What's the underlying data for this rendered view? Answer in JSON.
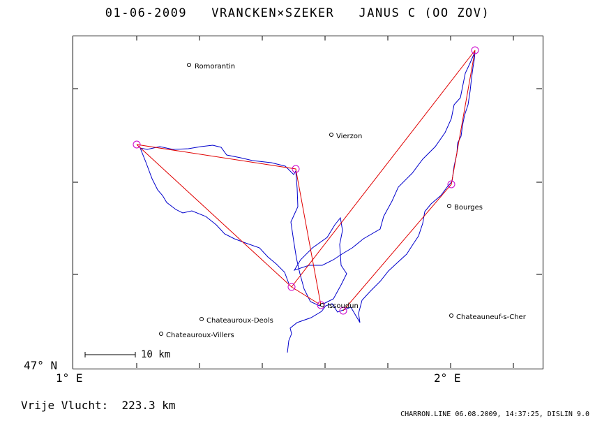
{
  "header": {
    "title": "01-06-2009   VRANCKEN×SZEKER   JANUS C (OO ZOV)"
  },
  "axes": {
    "lat_label": "47° N",
    "lon_labels": [
      "1° E",
      "2° E"
    ]
  },
  "scale": {
    "label": "10 km"
  },
  "cities": [
    {
      "name": "Romorantin"
    },
    {
      "name": "Vierzon"
    },
    {
      "name": "Bourges"
    },
    {
      "name": "Issoudun"
    },
    {
      "name": "Chateauroux-Deols"
    },
    {
      "name": "Chateauroux-Villers"
    },
    {
      "name": "Chateauneuf-s-Cher"
    }
  ],
  "summary": {
    "distance_text": "Vrije Vlucht:  223.3 km"
  },
  "footer": {
    "text": "CHARRON.LINE 06.08.2009, 14:37:25, DISLIN 9.0"
  },
  "colors": {
    "track": "#0000cc",
    "task": "#e00000",
    "turnpoint": "#cc00cc",
    "frame": "#000000"
  }
}
